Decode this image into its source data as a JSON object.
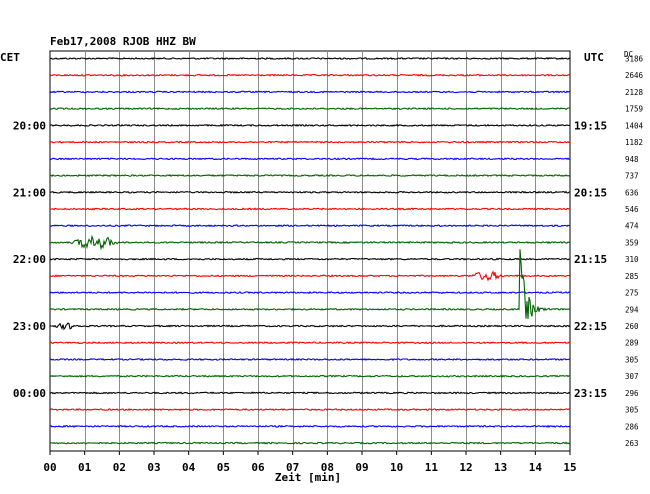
{
  "chart_data": {
    "type": "line",
    "title": "Feb17,2008   RJOB HHZ BW",
    "xlabel": "Zeit [min]",
    "ylabel": "",
    "left_axis_label": "CET",
    "right_axis_label": "UTC",
    "dc_label": "DC",
    "x_ticks": [
      "00",
      "01",
      "02",
      "03",
      "04",
      "05",
      "06",
      "07",
      "08",
      "09",
      "10",
      "11",
      "12",
      "13",
      "14",
      "15"
    ],
    "xlim": [
      0,
      15
    ],
    "grid": true,
    "trace_colors": [
      "#000000",
      "#ff0000",
      "#0000ff",
      "#006400"
    ],
    "left_time_labels": [
      {
        "row": 4,
        "label": "20:00"
      },
      {
        "row": 8,
        "label": "21:00"
      },
      {
        "row": 12,
        "label": "22:00"
      },
      {
        "row": 16,
        "label": "23:00"
      },
      {
        "row": 20,
        "label": "00:00"
      }
    ],
    "right_time_labels": [
      {
        "row": 4,
        "label": "19:15"
      },
      {
        "row": 8,
        "label": "20:15"
      },
      {
        "row": 12,
        "label": "21:15"
      },
      {
        "row": 16,
        "label": "22:15"
      },
      {
        "row": 20,
        "label": "23:15"
      }
    ],
    "dc_values": [
      "3186",
      "2646",
      "2128",
      "1759",
      "1404",
      "1182",
      "948",
      "737",
      "636",
      "546",
      "474",
      "359",
      "310",
      "285",
      "275",
      "294",
      "260",
      "289",
      "305",
      "307",
      "296",
      "305",
      "286",
      "263"
    ],
    "events": [
      {
        "row": 11,
        "minute": 0.6,
        "duration": 1.4,
        "amplitude": 6
      },
      {
        "row": 13,
        "minute": 12.1,
        "duration": 1.0,
        "amplitude": 4
      },
      {
        "row": 15,
        "minute": 13.55,
        "duration": 1.45,
        "amplitude": 60
      },
      {
        "row": 16,
        "minute": 0.1,
        "duration": 0.8,
        "amplitude": 2.5
      }
    ]
  }
}
